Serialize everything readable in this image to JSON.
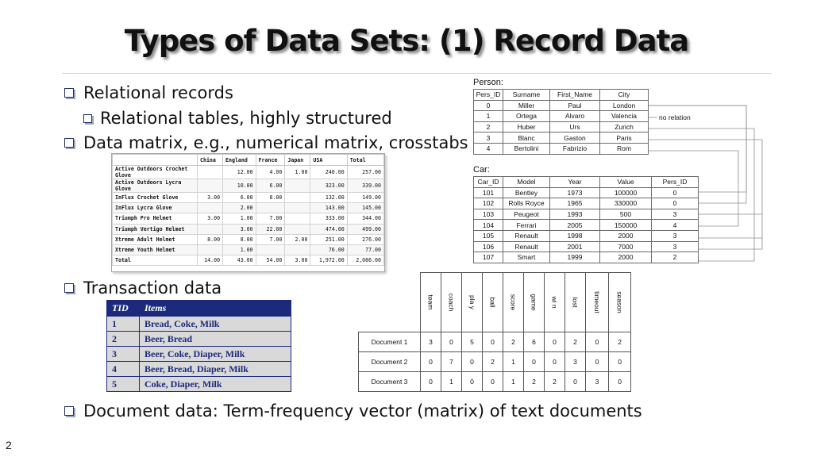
{
  "title": "Types of Data Sets: (1) Record Data",
  "page_number": "2",
  "bullets": {
    "b1": "Relational records",
    "b1_sub": "Relational tables, highly structured",
    "b2": "Data matrix, e.g., numerical matrix, crosstabs",
    "b3": "Transaction data",
    "b4": "Document data: Term-frequency vector (matrix) of text documents"
  },
  "crosstab": {
    "headers": [
      "",
      "China",
      "England",
      "France",
      "Japan",
      "USA",
      "Total"
    ],
    "rows": [
      [
        "Active Outdoors Crochet Glove",
        "",
        "12.00",
        "4.00",
        "1.00",
        "240.00",
        "257.00"
      ],
      [
        "Active Outdoors Lycra Glove",
        "",
        "10.00",
        "6.00",
        "",
        "323.00",
        "339.00"
      ],
      [
        "InFlux Crochet Glove",
        "3.00",
        "6.00",
        "8.00",
        "",
        "132.00",
        "149.00"
      ],
      [
        "InFlux Lycra Glove",
        "",
        "2.00",
        "",
        "",
        "143.00",
        "145.00"
      ],
      [
        "Triumph Pro Helmet",
        "3.00",
        "1.00",
        "7.00",
        "",
        "333.00",
        "344.00"
      ],
      [
        "Triumph Vertigo Helmet",
        "",
        "3.00",
        "22.00",
        "",
        "474.00",
        "499.00"
      ],
      [
        "Xtreme Adult Helmet",
        "8.00",
        "8.00",
        "7.00",
        "2.00",
        "251.00",
        "276.00"
      ],
      [
        "Xtreme Youth Helmet",
        "",
        "1.00",
        "",
        "",
        "76.00",
        "77.00"
      ],
      [
        "Total",
        "14.00",
        "43.00",
        "54.00",
        "3.00",
        "1,972.00",
        "2,086.00"
      ]
    ]
  },
  "transactions": {
    "headers": [
      "TID",
      "Items"
    ],
    "rows": [
      [
        "1",
        "Bread, Coke, Milk"
      ],
      [
        "2",
        "Beer, Bread"
      ],
      [
        "3",
        "Beer, Coke, Diaper, Milk"
      ],
      [
        "4",
        "Beer, Bread, Diaper, Milk"
      ],
      [
        "5",
        "Coke, Diaper, Milk"
      ]
    ]
  },
  "person": {
    "label": "Person:",
    "headers": [
      "Pers_ID",
      "Surname",
      "First_Name",
      "City"
    ],
    "rows": [
      [
        "0",
        "Miller",
        "Paul",
        "London"
      ],
      [
        "1",
        "Ortega",
        "Alvaro",
        "Valencia"
      ],
      [
        "2",
        "Huber",
        "Urs",
        "Zurich"
      ],
      [
        "3",
        "Blanc",
        "Gaston",
        "Paris"
      ],
      [
        "4",
        "Bertolini",
        "Fabrizio",
        "Rom"
      ]
    ],
    "no_relation": "no relation"
  },
  "car": {
    "label": "Car:",
    "headers": [
      "Car_ID",
      "Model",
      "Year",
      "Value",
      "Pers_ID"
    ],
    "rows": [
      [
        "101",
        "Bentley",
        "1973",
        "100000",
        "0"
      ],
      [
        "102",
        "Rolls Royce",
        "1965",
        "330000",
        "0"
      ],
      [
        "103",
        "Peugeot",
        "1993",
        "500",
        "3"
      ],
      [
        "104",
        "Ferrari",
        "2005",
        "150000",
        "4"
      ],
      [
        "105",
        "Renault",
        "1998",
        "2000",
        "3"
      ],
      [
        "106",
        "Renault",
        "2001",
        "7000",
        "3"
      ],
      [
        "107",
        "Smart",
        "1999",
        "2000",
        "2"
      ]
    ]
  },
  "documents": {
    "terms": [
      "team",
      "coach",
      "pla\ny",
      "ball",
      "score",
      "game",
      "wi\nn",
      "lost",
      "timeout",
      "season"
    ],
    "rows": [
      [
        "Document 1",
        "3",
        "0",
        "5",
        "0",
        "2",
        "6",
        "0",
        "2",
        "0",
        "2"
      ],
      [
        "Document 2",
        "0",
        "7",
        "0",
        "2",
        "1",
        "0",
        "0",
        "3",
        "0",
        "0"
      ],
      [
        "Document 3",
        "0",
        "1",
        "0",
        "0",
        "1",
        "2",
        "2",
        "0",
        "3",
        "0"
      ]
    ]
  }
}
